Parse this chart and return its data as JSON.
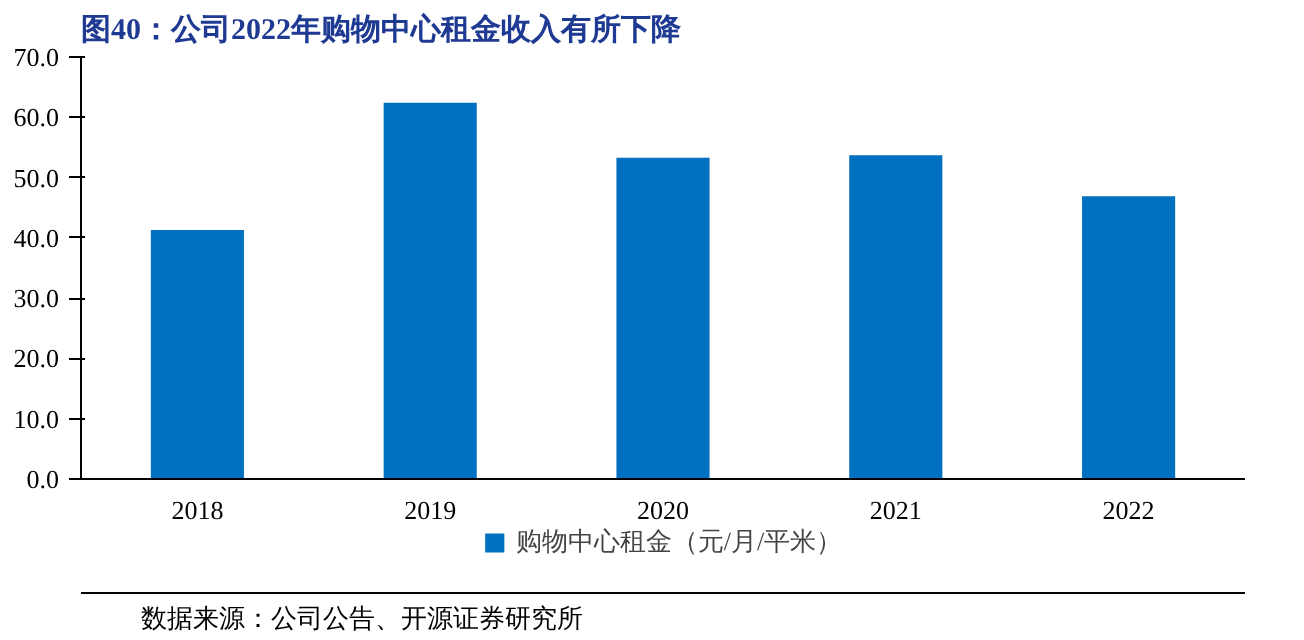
{
  "chart_data": {
    "type": "bar",
    "title": "图40：公司2022年购物中心租金收入有所下降",
    "categories": [
      "2018",
      "2019",
      "2020",
      "2021",
      "2022"
    ],
    "series": [
      {
        "name": "购物中心租金（元/月/平米）",
        "color": "#0070c0",
        "values": [
          41.3,
          62.4,
          53.3,
          53.7,
          46.9
        ]
      }
    ],
    "ylim": [
      0,
      70
    ],
    "yticks": [
      {
        "value": 0,
        "label": "0.0"
      },
      {
        "value": 10,
        "label": "10.0"
      },
      {
        "value": 20,
        "label": "20.0"
      },
      {
        "value": 30,
        "label": "30.0"
      },
      {
        "value": 40,
        "label": "40.0"
      },
      {
        "value": 50,
        "label": "50.0"
      },
      {
        "value": 60,
        "label": "60.0"
      },
      {
        "value": 70,
        "label": "70.0"
      }
    ],
    "legend": "bottom",
    "grid": false,
    "annotations": [
      "数据来源：公司公告、开源证券研究所"
    ]
  }
}
